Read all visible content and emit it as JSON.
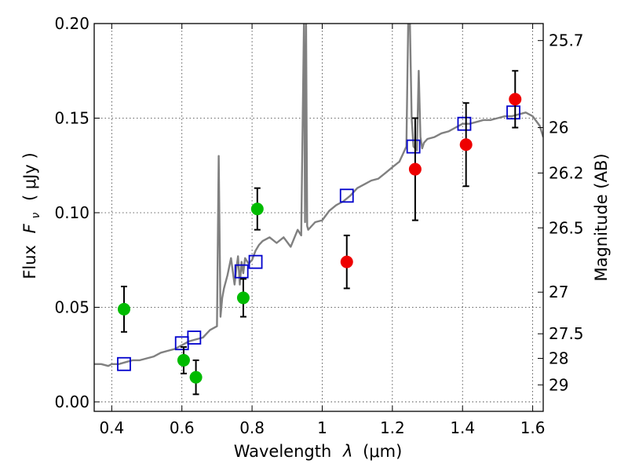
{
  "chart_data": {
    "type": "scatter",
    "title": "",
    "xlabel_prefix": "Wavelength",
    "xlabel_symbol": "λ",
    "xlabel_unit": "(μm)",
    "ylabel_prefix": "Flux",
    "ylabel_symbol": "F",
    "ylabel_subscript": "ν",
    "ylabel_unit": "( μJy )",
    "y2label": "Magnitude (AB)",
    "xlim": [
      0.35,
      1.63
    ],
    "ylim": [
      -0.005,
      0.2
    ],
    "grid": true,
    "x_ticks": [
      0.4,
      0.6,
      0.8,
      1.0,
      1.2,
      1.4,
      1.6
    ],
    "x_tick_labels": [
      "0.4",
      "0.6",
      "0.8",
      "1",
      "1.2",
      "1.4",
      "1.6"
    ],
    "y_ticks": [
      0.0,
      0.05,
      0.1,
      0.15,
      0.2
    ],
    "y_tick_labels": [
      "0.00",
      "0.05",
      "0.10",
      "0.15",
      "0.20"
    ],
    "y2_ticks": [
      {
        "label": "25.7",
        "flux": 0.191
      },
      {
        "label": "26",
        "flux": 0.145
      },
      {
        "label": "26.2",
        "flux": 0.121
      },
      {
        "label": "26.5",
        "flux": 0.092
      },
      {
        "label": "27",
        "flux": 0.058
      },
      {
        "label": "27.5",
        "flux": 0.036
      },
      {
        "label": "28",
        "flux": 0.023
      },
      {
        "label": "29",
        "flux": 0.009
      }
    ],
    "series": [
      {
        "kind": "line",
        "color": "#808080",
        "x": [
          0.35,
          0.37,
          0.39,
          0.4,
          0.42,
          0.44,
          0.46,
          0.48,
          0.5,
          0.52,
          0.54,
          0.56,
          0.58,
          0.6,
          0.62,
          0.64,
          0.66,
          0.68,
          0.7,
          0.705,
          0.71,
          0.715,
          0.72,
          0.73,
          0.74,
          0.75,
          0.755,
          0.76,
          0.765,
          0.77,
          0.775,
          0.78,
          0.79,
          0.8,
          0.81,
          0.82,
          0.83,
          0.85,
          0.87,
          0.89,
          0.91,
          0.93,
          0.94,
          0.948,
          0.951,
          0.954,
          0.957,
          0.96,
          0.98,
          1.0,
          1.02,
          1.04,
          1.06,
          1.08,
          1.1,
          1.12,
          1.14,
          1.16,
          1.18,
          1.2,
          1.22,
          1.24,
          1.245,
          1.25,
          1.255,
          1.26,
          1.27,
          1.275,
          1.28,
          1.285,
          1.29,
          1.3,
          1.32,
          1.34,
          1.36,
          1.38,
          1.4,
          1.42,
          1.44,
          1.46,
          1.48,
          1.5,
          1.52,
          1.54,
          1.56,
          1.58,
          1.6,
          1.62,
          1.63
        ],
        "y": [
          0.02,
          0.02,
          0.019,
          0.02,
          0.02,
          0.021,
          0.022,
          0.022,
          0.023,
          0.024,
          0.026,
          0.027,
          0.028,
          0.03,
          0.032,
          0.033,
          0.034,
          0.038,
          0.04,
          0.13,
          0.045,
          0.055,
          0.06,
          0.067,
          0.076,
          0.062,
          0.07,
          0.077,
          0.062,
          0.074,
          0.068,
          0.076,
          0.073,
          0.075,
          0.08,
          0.083,
          0.085,
          0.087,
          0.084,
          0.087,
          0.082,
          0.091,
          0.088,
          0.2,
          0.095,
          0.2,
          0.093,
          0.091,
          0.095,
          0.096,
          0.101,
          0.104,
          0.106,
          0.109,
          0.113,
          0.115,
          0.117,
          0.118,
          0.121,
          0.124,
          0.127,
          0.135,
          0.2,
          0.2,
          0.15,
          0.135,
          0.133,
          0.175,
          0.14,
          0.134,
          0.137,
          0.139,
          0.14,
          0.142,
          0.143,
          0.145,
          0.147,
          0.147,
          0.148,
          0.149,
          0.149,
          0.15,
          0.151,
          0.151,
          0.152,
          0.153,
          0.151,
          0.146,
          0.14
        ]
      },
      {
        "kind": "square",
        "color": "#0000cc",
        "x": [
          0.435,
          0.6,
          0.635,
          0.77,
          0.81,
          1.07,
          1.26,
          1.405,
          1.545
        ],
        "y": [
          0.02,
          0.031,
          0.034,
          0.069,
          0.074,
          0.109,
          0.135,
          0.147,
          0.153
        ]
      },
      {
        "kind": "circle",
        "color": "#00bb00",
        "x": [
          0.435,
          0.605,
          0.64,
          0.775,
          0.815
        ],
        "y": [
          0.049,
          0.022,
          0.013,
          0.055,
          0.102
        ],
        "err": [
          0.012,
          0.007,
          0.009,
          0.01,
          0.011
        ]
      },
      {
        "kind": "circle",
        "color": "#ee0000",
        "x": [
          1.07,
          1.265,
          1.41,
          1.55
        ],
        "y": [
          0.074,
          0.123,
          0.136,
          0.16
        ],
        "err": [
          0.014,
          0.027,
          0.022,
          0.015
        ]
      }
    ]
  }
}
